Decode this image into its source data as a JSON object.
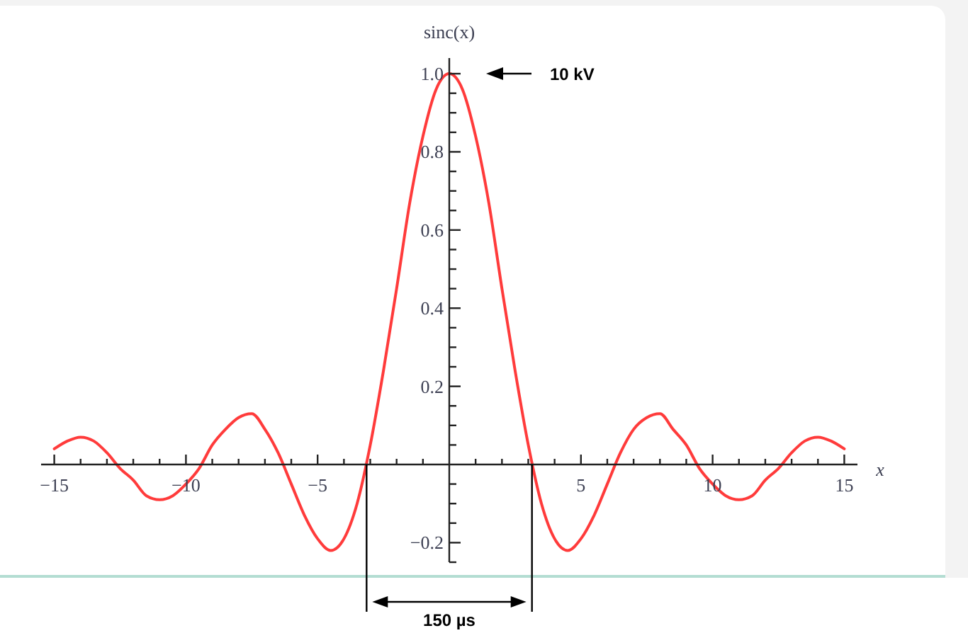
{
  "chart_data": {
    "type": "line",
    "xlabel": "x",
    "ylabel": "sinc(x)",
    "x": [
      -15,
      -14.5,
      -14,
      -13.5,
      -13,
      -12.5,
      -12,
      -11.5,
      -11,
      -10.5,
      -10,
      -9.5,
      -9,
      -8.5,
      -8,
      -7.5,
      -7,
      -6.5,
      -6,
      -5.5,
      -5,
      -4.5,
      -4,
      -3.5,
      -3,
      -2.5,
      -2,
      -1.5,
      -1,
      -0.5,
      0,
      0.5,
      1,
      1.5,
      2,
      2.5,
      3,
      3.5,
      4,
      4.5,
      5,
      5.5,
      6,
      6.5,
      7,
      7.5,
      8,
      8.5,
      9,
      9.5,
      10,
      10.5,
      11,
      11.5,
      12,
      12.5,
      13,
      13.5,
      14,
      14.5,
      15
    ],
    "values": [
      0.04,
      0.06,
      0.07,
      0.06,
      0.03,
      -0.01,
      -0.04,
      -0.08,
      -0.09,
      -0.08,
      -0.05,
      -0.01,
      0.05,
      0.09,
      0.12,
      0.13,
      0.09,
      0.03,
      -0.05,
      -0.13,
      -0.19,
      -0.22,
      -0.19,
      -0.1,
      0.05,
      0.24,
      0.45,
      0.67,
      0.84,
      0.96,
      1.0,
      0.96,
      0.84,
      0.67,
      0.45,
      0.24,
      0.05,
      -0.1,
      -0.19,
      -0.22,
      -0.19,
      -0.13,
      -0.05,
      0.03,
      0.09,
      0.12,
      0.13,
      0.09,
      0.05,
      -0.01,
      -0.05,
      -0.08,
      -0.09,
      -0.08,
      -0.04,
      -0.01,
      0.03,
      0.06,
      0.07,
      0.06,
      0.04
    ],
    "color": "#ff3b3b",
    "xlim": [
      -15.5,
      15.5
    ],
    "xticks": [
      {
        "value": -15,
        "label": "−15"
      },
      {
        "value": -14,
        "label": null
      },
      {
        "value": -13,
        "label": null
      },
      {
        "value": -12,
        "label": null
      },
      {
        "value": -11,
        "label": null
      },
      {
        "value": -10,
        "label": "−10"
      },
      {
        "value": -9,
        "label": null
      },
      {
        "value": -8,
        "label": null
      },
      {
        "value": -7,
        "label": null
      },
      {
        "value": -6,
        "label": null
      },
      {
        "value": -5,
        "label": "−5"
      },
      {
        "value": -4,
        "label": null
      },
      {
        "value": -3,
        "label": null
      },
      {
        "value": -2,
        "label": null
      },
      {
        "value": -1,
        "label": null
      },
      {
        "value": 1,
        "label": null
      },
      {
        "value": 2,
        "label": null
      },
      {
        "value": 3,
        "label": null
      },
      {
        "value": 4,
        "label": null
      },
      5,
      {
        "value": 6,
        "label": null
      },
      {
        "value": 7,
        "label": null
      },
      {
        "value": 8,
        "label": null
      },
      {
        "value": 9,
        "label": null
      },
      10,
      {
        "value": 11,
        "label": null
      },
      {
        "value": 12,
        "label": null
      },
      {
        "value": 13,
        "label": null
      },
      {
        "value": 14,
        "label": null
      },
      15
    ],
    "ylim": [
      -0.25,
      1.04
    ],
    "yticks": [
      {
        "value": -0.25,
        "label": null
      },
      {
        "value": -0.2,
        "label": "−0.2"
      },
      {
        "value": -0.15,
        "label": null
      },
      {
        "value": -0.1,
        "label": null
      },
      {
        "value": -0.05,
        "label": null
      },
      {
        "value": 0.05,
        "label": null
      },
      {
        "value": 0.1,
        "label": null
      },
      {
        "value": 0.15,
        "label": null
      },
      0.2,
      {
        "value": 0.25,
        "label": null
      },
      {
        "value": 0.3,
        "label": null
      },
      {
        "value": 0.35,
        "label": null
      },
      0.4,
      {
        "value": 0.45,
        "label": null
      },
      {
        "value": 0.5,
        "label": null
      },
      {
        "value": 0.55,
        "label": null
      },
      0.6,
      {
        "value": 0.65,
        "label": null
      },
      {
        "value": 0.7,
        "label": null
      },
      {
        "value": 0.75,
        "label": null
      },
      0.8,
      {
        "value": 0.85,
        "label": null
      },
      {
        "value": 0.9,
        "label": null
      },
      {
        "value": 0.95,
        "label": null
      },
      {
        "value": 1,
        "label": "1.0"
      }
    ],
    "ref_lines": [
      {
        "axis": "x",
        "value": -3.14,
        "color": "#000000"
      },
      {
        "axis": "x",
        "value": 3.14,
        "color": "#000000"
      }
    ],
    "annotations": [
      "10 kV",
      "150 µs"
    ]
  }
}
